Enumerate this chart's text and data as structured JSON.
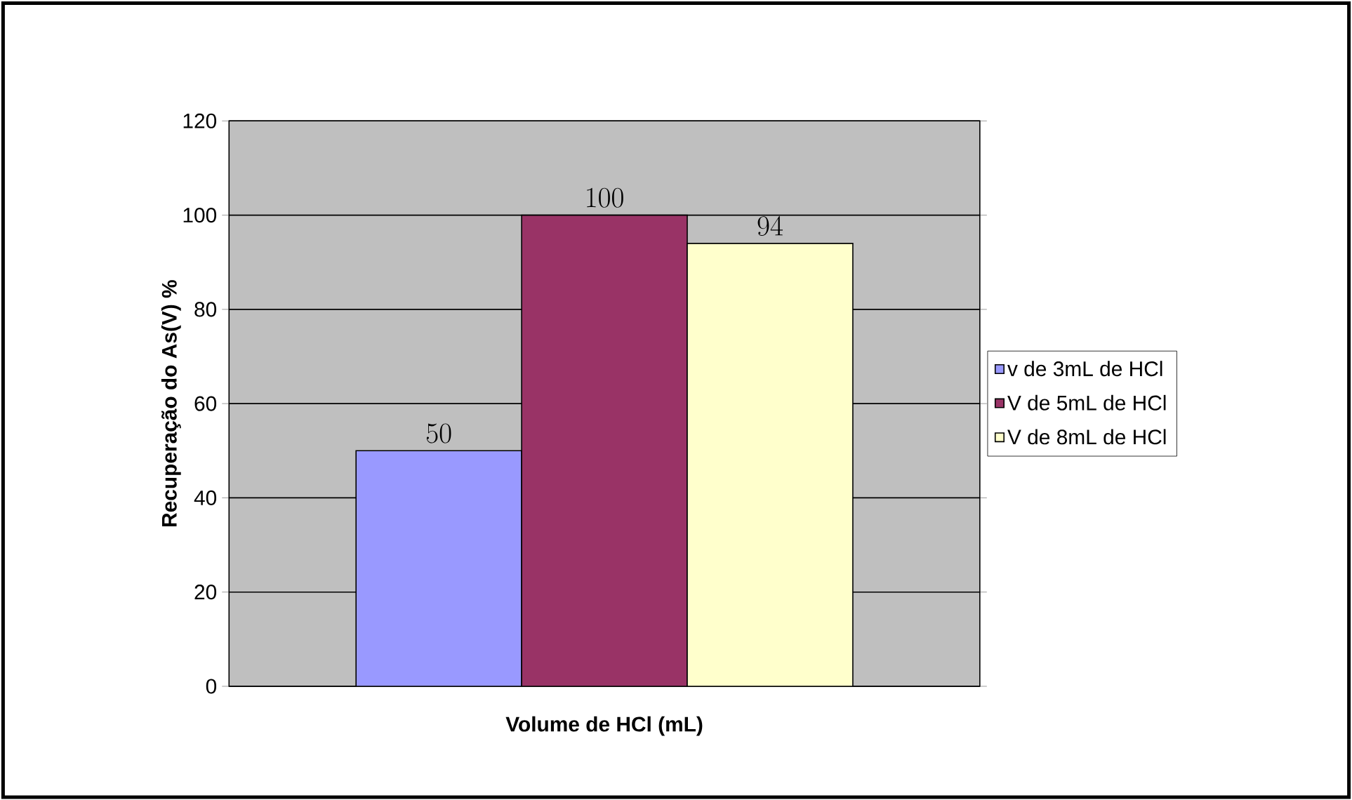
{
  "chart_data": {
    "type": "bar",
    "categories": [
      null
    ],
    "xlabel": "Volume de HCl (mL)",
    "ylabel": "Recuperação do As(V) %",
    "series": [
      {
        "name": "v de 3mL de HCl",
        "color": "#9999ff",
        "values": [
          50
        ]
      },
      {
        "name": "V de 5mL de HCl",
        "color": "#993366",
        "values": [
          100
        ]
      },
      {
        "name": "V de 8mL de HCl",
        "color": "#ffffcc",
        "values": [
          94
        ]
      }
    ],
    "ylim": [
      0,
      120
    ],
    "yticks": [
      0,
      20,
      40,
      60,
      80,
      100,
      120
    ],
    "grid": "y",
    "legend": "right",
    "data_labels": true
  }
}
